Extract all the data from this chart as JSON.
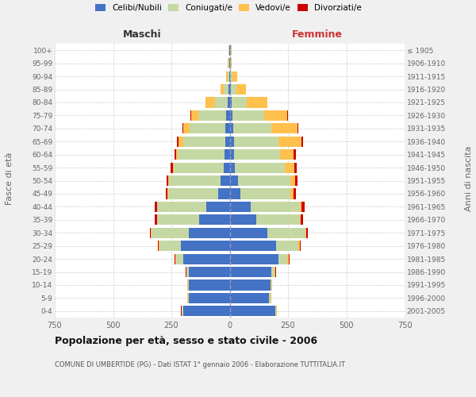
{
  "age_groups": [
    "0-4",
    "5-9",
    "10-14",
    "15-19",
    "20-24",
    "25-29",
    "30-34",
    "35-39",
    "40-44",
    "45-49",
    "50-54",
    "55-59",
    "60-64",
    "65-69",
    "70-74",
    "75-79",
    "80-84",
    "85-89",
    "90-94",
    "95-99",
    "100+"
  ],
  "birth_years": [
    "2001-2005",
    "1996-2000",
    "1991-1995",
    "1986-1990",
    "1981-1985",
    "1976-1980",
    "1971-1975",
    "1966-1970",
    "1961-1965",
    "1956-1960",
    "1951-1955",
    "1946-1950",
    "1941-1945",
    "1936-1940",
    "1931-1935",
    "1926-1930",
    "1921-1925",
    "1916-1920",
    "1911-1915",
    "1906-1910",
    "≤ 1905"
  ],
  "maschi_celibi": [
    200,
    175,
    175,
    175,
    200,
    210,
    175,
    130,
    100,
    50,
    40,
    25,
    22,
    20,
    18,
    15,
    8,
    4,
    2,
    2,
    2
  ],
  "maschi_coniugati": [
    5,
    5,
    5,
    10,
    30,
    90,
    160,
    180,
    210,
    215,
    220,
    215,
    200,
    180,
    155,
    120,
    55,
    20,
    8,
    3,
    2
  ],
  "maschi_vedovi": [
    2,
    2,
    2,
    2,
    4,
    3,
    2,
    2,
    2,
    2,
    3,
    3,
    8,
    20,
    25,
    30,
    40,
    15,
    5,
    2,
    1
  ],
  "maschi_divorziati": [
    1,
    1,
    1,
    2,
    3,
    5,
    5,
    8,
    10,
    8,
    8,
    10,
    5,
    5,
    5,
    5,
    0,
    0,
    0,
    0,
    0
  ],
  "femmine_celibi": [
    195,
    170,
    175,
    180,
    210,
    200,
    160,
    115,
    90,
    45,
    35,
    22,
    20,
    18,
    15,
    12,
    8,
    5,
    3,
    2,
    2
  ],
  "femmine_coniugati": [
    5,
    5,
    5,
    12,
    35,
    95,
    165,
    185,
    210,
    215,
    225,
    215,
    195,
    190,
    165,
    135,
    65,
    25,
    10,
    3,
    2
  ],
  "femmine_vedovi": [
    2,
    2,
    2,
    4,
    10,
    5,
    3,
    5,
    8,
    15,
    20,
    40,
    60,
    100,
    110,
    100,
    90,
    40,
    20,
    5,
    3
  ],
  "femmine_divorziati": [
    1,
    1,
    1,
    2,
    3,
    5,
    8,
    10,
    15,
    10,
    10,
    12,
    10,
    8,
    5,
    3,
    0,
    0,
    0,
    0,
    0
  ],
  "colors": {
    "celibi": "#4472c4",
    "coniugati": "#c5d8a4",
    "vedovi": "#ffc04d",
    "divorziati": "#cc0000"
  },
  "title": "Popolazione per età, sesso e stato civile - 2006",
  "subtitle": "COMUNE DI UMBERTIDE (PG) - Dati ISTAT 1° gennaio 2006 - Elaborazione TUTTITALIA.IT",
  "xlabel_left": "Maschi",
  "xlabel_right": "Femmine",
  "ylabel_left": "Fasce di età",
  "ylabel_right": "Anni di nascita",
  "xlim": 750,
  "background_color": "#f0f0f0",
  "plot_bg": "#ffffff"
}
